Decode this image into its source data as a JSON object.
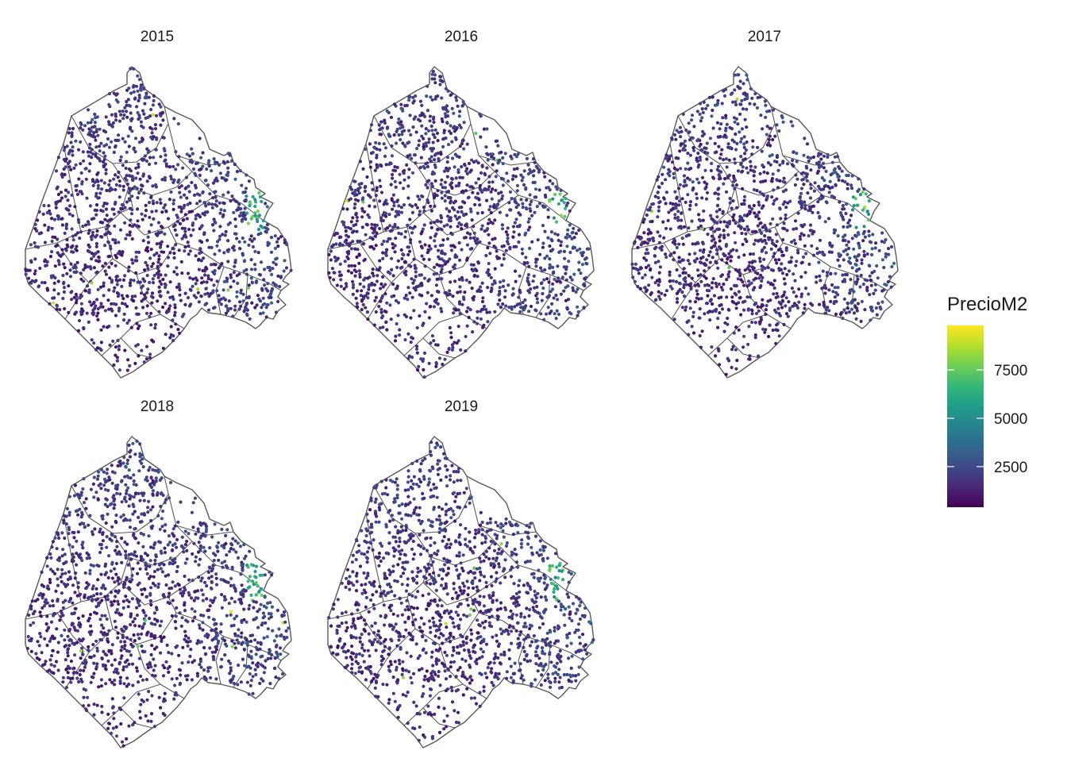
{
  "panels": [
    {
      "year": "2015"
    },
    {
      "year": "2016"
    },
    {
      "year": "2017"
    },
    {
      "year": "2018"
    },
    {
      "year": "2019"
    }
  ],
  "legend": {
    "title": "PrecioM2",
    "ticks": [
      {
        "label": "2500",
        "value": 2500
      },
      {
        "label": "5000",
        "value": 5000
      },
      {
        "label": "7500",
        "value": 7500
      }
    ],
    "range": [
      400,
      9800
    ],
    "palette": [
      "#440154",
      "#482878",
      "#3e4989",
      "#31688e",
      "#26828e",
      "#1f9e89",
      "#35b779",
      "#6ece58",
      "#b5de2b",
      "#fde725"
    ]
  },
  "colors": {
    "outline": "#595959",
    "background": "#ffffff"
  }
}
